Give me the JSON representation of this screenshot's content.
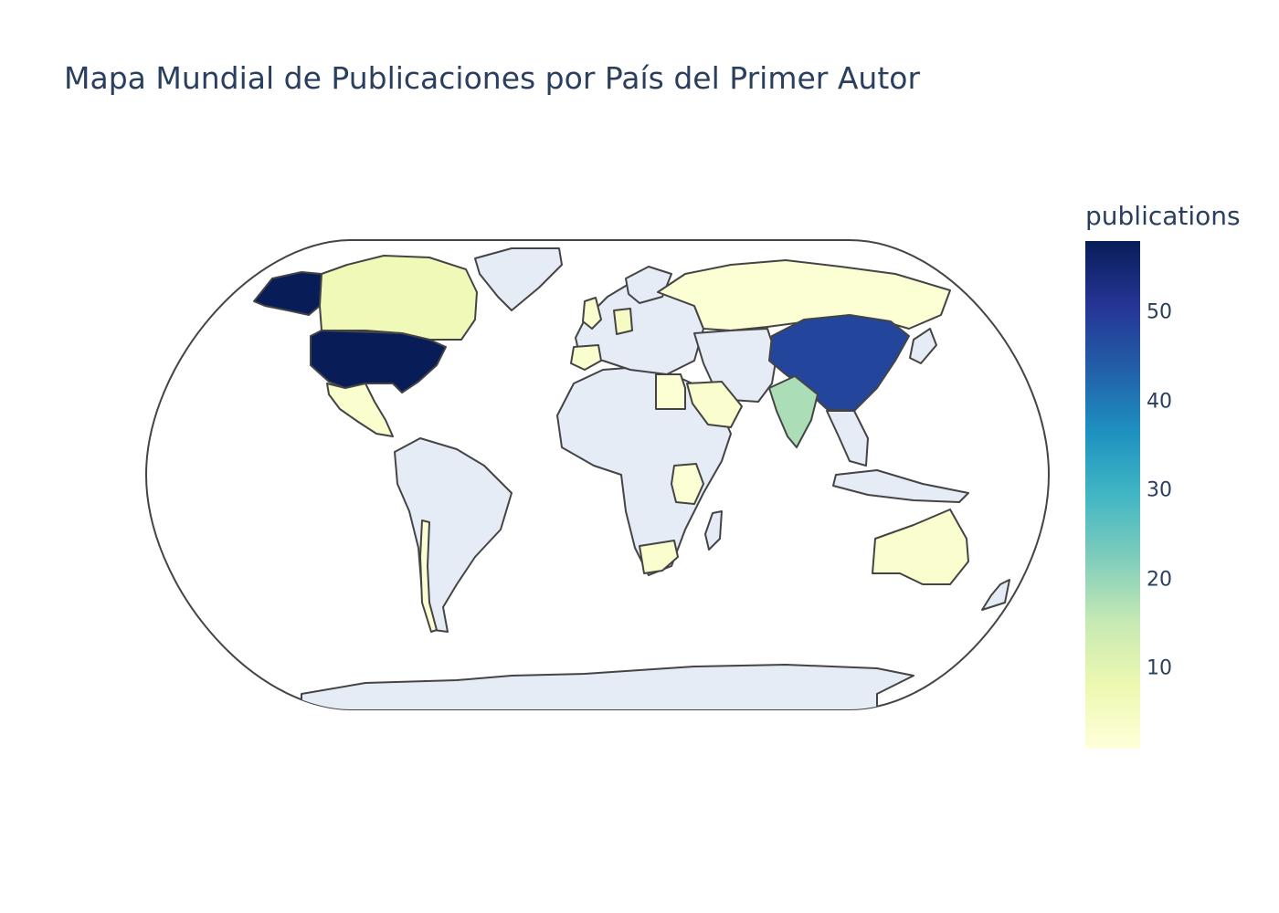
{
  "title": "Mapa Mundial de Publicaciones por País del Primer Autor",
  "chart_data": {
    "type": "choropleth",
    "projection": "natural earth",
    "colorbar": {
      "title": "publications",
      "colorscale": [
        "#ffffd9",
        "#edf8b1",
        "#c7e9b4",
        "#7fcdbb",
        "#41b6c4",
        "#1d91c0",
        "#225ea8",
        "#253494",
        "#081d58"
      ],
      "range": [
        1,
        58
      ],
      "ticks": [
        10,
        20,
        30,
        40,
        50
      ]
    },
    "no_data_color": "#e5ecf6",
    "countries": [
      {
        "name": "United States",
        "value": 58
      },
      {
        "name": "China",
        "value": 48
      },
      {
        "name": "India",
        "value": 18
      },
      {
        "name": "Canada",
        "value": 7
      },
      {
        "name": "Germany",
        "value": 5
      },
      {
        "name": "Russia",
        "value": 2
      },
      {
        "name": "Australia",
        "value": 3
      },
      {
        "name": "Mexico",
        "value": 3
      },
      {
        "name": "Saudi Arabia",
        "value": 3
      },
      {
        "name": "Egypt",
        "value": 2
      },
      {
        "name": "South Africa",
        "value": 3
      },
      {
        "name": "Tanzania",
        "value": 2
      },
      {
        "name": "United Kingdom",
        "value": 3
      },
      {
        "name": "Spain",
        "value": 3
      },
      {
        "name": "Chile",
        "value": 2
      }
    ]
  }
}
